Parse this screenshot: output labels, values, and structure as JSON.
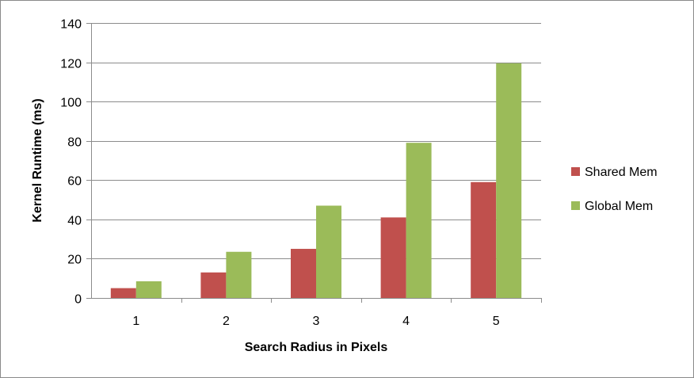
{
  "chart_data": {
    "type": "bar",
    "title": "",
    "xlabel": "Search Radius in Pixels",
    "ylabel": "Kernel Runtime (ms)",
    "categories": [
      "1",
      "2",
      "3",
      "4",
      "5"
    ],
    "series": [
      {
        "name": "Shared Mem",
        "color": "#c0504d",
        "values": [
          5,
          13,
          25,
          41,
          59
        ]
      },
      {
        "name": "Global Mem",
        "color": "#9bbb59",
        "values": [
          8.5,
          23.5,
          47,
          79,
          119.5
        ]
      }
    ],
    "ylim": [
      0,
      140
    ],
    "yticks": [
      0,
      20,
      40,
      60,
      80,
      100,
      120,
      140
    ],
    "grid": true,
    "legend": "right"
  }
}
